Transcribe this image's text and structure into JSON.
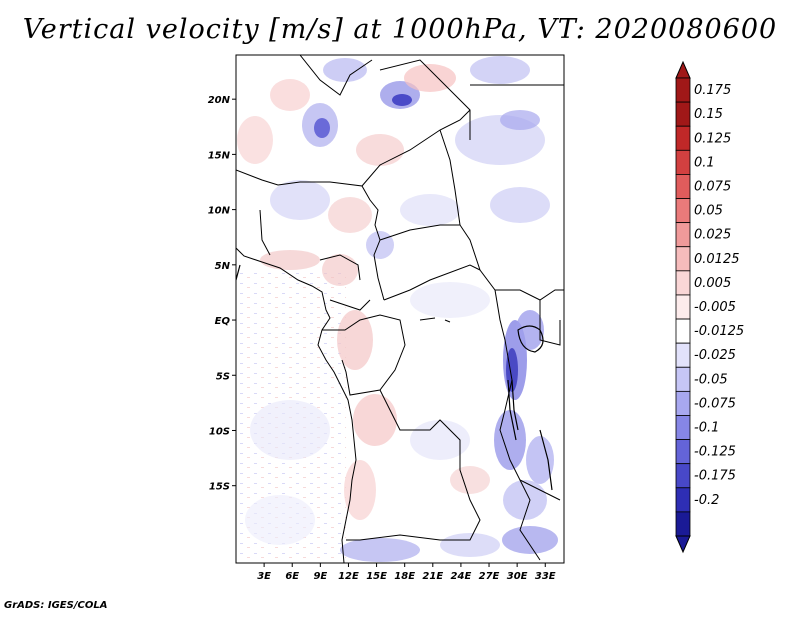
{
  "title": "Vertical velocity [m/s] at 1000hPa, VT: 2020080600",
  "credit": "GrADS: IGES/COLA",
  "map": {
    "lon_range": [
      0,
      35
    ],
    "lat_range": [
      -22,
      24
    ],
    "lat_ticks": [
      {
        "value": 20,
        "label": "20N"
      },
      {
        "value": 15,
        "label": "15N"
      },
      {
        "value": 10,
        "label": "10N"
      },
      {
        "value": 5,
        "label": "5N"
      },
      {
        "value": 0,
        "label": "EQ"
      },
      {
        "value": -5,
        "label": "5S"
      },
      {
        "value": -10,
        "label": "10S"
      },
      {
        "value": -15,
        "label": "15S"
      }
    ],
    "lon_ticks": [
      {
        "value": 3,
        "label": "3E"
      },
      {
        "value": 6,
        "label": "6E"
      },
      {
        "value": 9,
        "label": "9E"
      },
      {
        "value": 12,
        "label": "12E"
      },
      {
        "value": 15,
        "label": "15E"
      },
      {
        "value": 18,
        "label": "18E"
      },
      {
        "value": 21,
        "label": "21E"
      },
      {
        "value": 24,
        "label": "24E"
      },
      {
        "value": 27,
        "label": "27E"
      },
      {
        "value": 30,
        "label": "30E"
      },
      {
        "value": 33,
        "label": "33E"
      }
    ]
  },
  "colorbar": {
    "levels": [
      {
        "label": "0.175",
        "color": "#a01818"
      },
      {
        "label": "0.15",
        "color": "#c02828"
      },
      {
        "label": "0.125",
        "color": "#d24040"
      },
      {
        "label": "0.1",
        "color": "#e05c5c"
      },
      {
        "label": "0.075",
        "color": "#ea7a7a"
      },
      {
        "label": "0.05",
        "color": "#f09a9a"
      },
      {
        "label": "0.025",
        "color": "#f6bcbc"
      },
      {
        "label": "0.0125",
        "color": "#fad6d6"
      },
      {
        "label": "0.005",
        "color": "#fdecec"
      },
      {
        "label": "-0.005",
        "color": "#ffffff"
      },
      {
        "label": "-0.0125",
        "color": "#e2e2fb"
      },
      {
        "label": "-0.025",
        "color": "#c6c6f6"
      },
      {
        "label": "-0.05",
        "color": "#a8a8f0"
      },
      {
        "label": "-0.075",
        "color": "#8686e6"
      },
      {
        "label": "-0.1",
        "color": "#6464d8"
      },
      {
        "label": "-0.125",
        "color": "#4848c8"
      },
      {
        "label": "-0.175",
        "color": "#2e2eb4"
      },
      {
        "label": "-0.2",
        "color": "#1a1a96"
      }
    ],
    "top_color": "#a01818",
    "bottom_color": "#1a1a96"
  }
}
